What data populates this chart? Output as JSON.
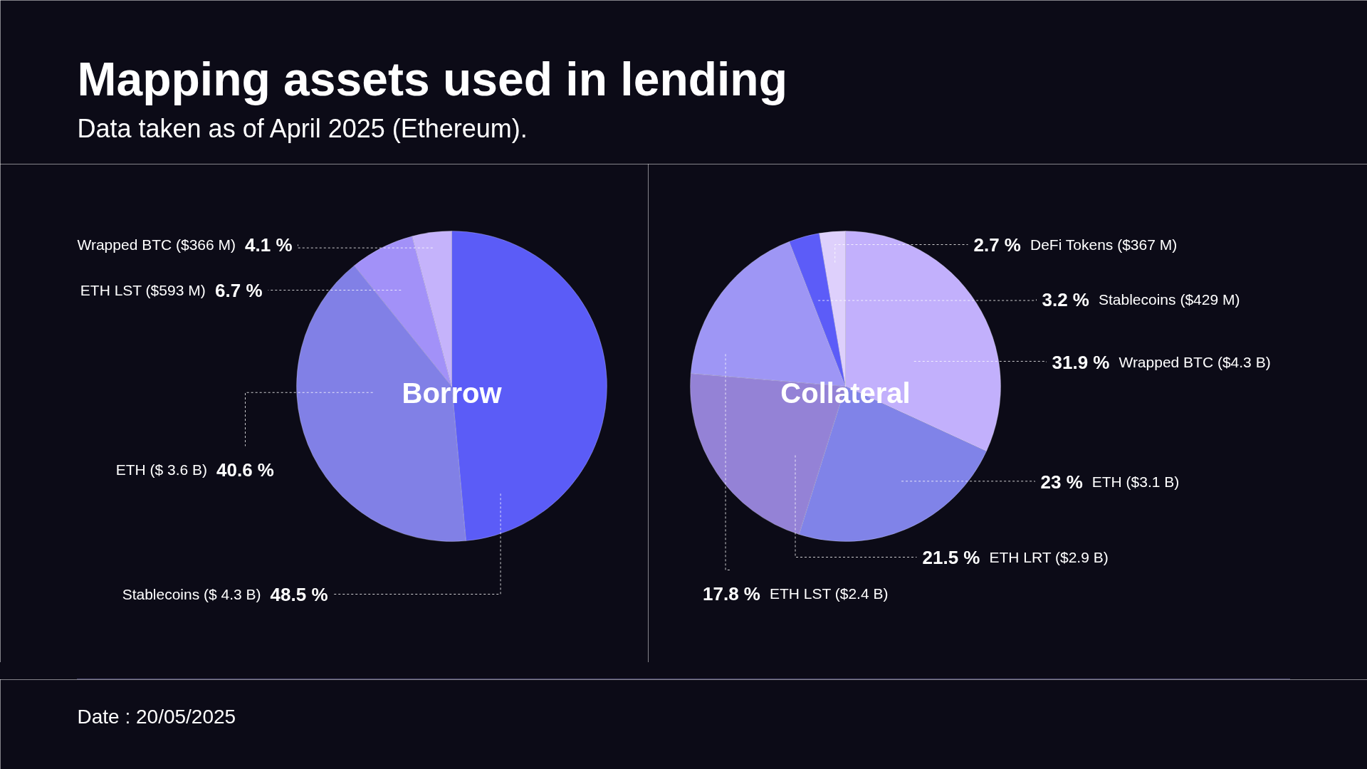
{
  "chart_data": [
    {
      "type": "other",
      "title": "Mapping assets used in lending",
      "subtitle": "Data taken as of April 2025 (Ethereum).",
      "annotations": [
        "Date : 20/05/2025"
      ]
    },
    {
      "type": "pie",
      "title": "Borrow",
      "categories": [
        "Stablecoins ($ 4.3 B)",
        "ETH ($ 3.6 B)",
        "ETH LST ($593 M)",
        "Wrapped BTC ($366 M)"
      ],
      "values": [
        48.5,
        40.6,
        6.7,
        4.1
      ],
      "colors": [
        "#5b5cf7",
        "#8180e6",
        "#a291f8",
        "#c5b3fb"
      ],
      "value_labels": [
        "48.5 %",
        "40.6 %",
        "6.7 %",
        "4.1 %"
      ]
    },
    {
      "type": "pie",
      "title": "Collateral",
      "categories": [
        "Wrapped BTC ($4.3 B)",
        "ETH ($3.1 B)",
        "ETH LRT ($2.9 B)",
        "ETH LST ($2.4 B)",
        "Stablecoins ($429 M)",
        "DeFi Tokens ($367 M)"
      ],
      "values": [
        31.9,
        23,
        21.5,
        17.8,
        3.2,
        2.7
      ],
      "colors": [
        "#c2b0fc",
        "#8083e8",
        "#9482d6",
        "#9e96f5",
        "#5c5cf8",
        "#ded0fc"
      ],
      "value_labels": [
        "31.9 %",
        "23 %",
        "21.5 %",
        "17.8 %",
        "3.2 %",
        "2.7 %"
      ]
    }
  ]
}
